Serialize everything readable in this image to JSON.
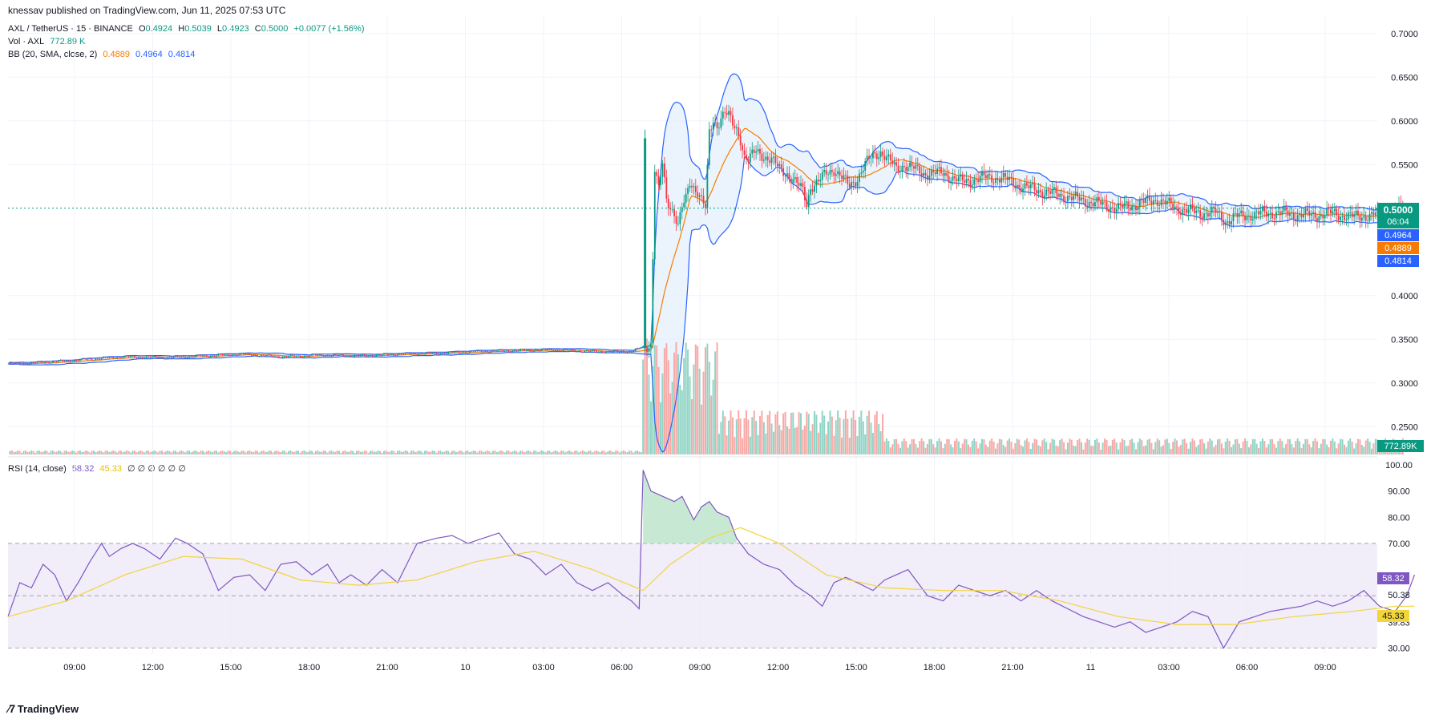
{
  "header": {
    "published": "knessav published on TradingView.com, Jun 11, 2025 07:53 UTC"
  },
  "legend": {
    "symbol": "AXL / TetherUS · 15 · BINANCE",
    "o_label": "O",
    "o": "0.4924",
    "h_label": "H",
    "h": "0.5039",
    "l_label": "L",
    "l": "0.4923",
    "c_label": "C",
    "c": "0.5000",
    "change": "+0.0077 (+1.56%)",
    "vol_label": "Vol · AXL",
    "vol": "772.89 K",
    "bb_label": "BB (20, SMA, close, 2)",
    "bb_basis": "0.4889",
    "bb_upper": "0.4964",
    "bb_lower": "0.4814",
    "rsi_label": "RSI (14, close)",
    "rsi": "58.32",
    "rsi_ma": "45.33",
    "rsi_extra": "∅ ∅ ∅ ∅ ∅ ∅"
  },
  "footer": {
    "logo_text": "TradingView"
  },
  "colors": {
    "up": "#089981",
    "down": "#f23645",
    "vol_up": "#8fd4c5",
    "vol_down": "#f7a9a7",
    "bb_band": "#2962ff",
    "bb_basis": "#f57c00",
    "bb_fill": "#e3f0fb",
    "rsi": "#7e57c2",
    "rsi_ma": "#f2d43d",
    "rsi_band": "#efeaf8",
    "price_line": "#089981"
  },
  "chart_data": [
    {
      "type": "candlestick",
      "title": "AXL / TetherUS · 15 · BINANCE",
      "y_axis_ticks": [
        "0.7000",
        "0.6500",
        "0.6000",
        "0.5500",
        "0.4000",
        "0.3500",
        "0.3000",
        "0.2500"
      ],
      "ylim": [
        0.22,
        0.72
      ],
      "x_tick_labels": [
        "09:00",
        "12:00",
        "15:00",
        "18:00",
        "21:00",
        "10",
        "03:00",
        "06:00",
        "09:00",
        "12:00",
        "15:00",
        "18:00",
        "21:00",
        "11",
        "03:00",
        "06:00",
        "09:00"
      ],
      "last_price_label": "0.5000",
      "countdown_label": "06:04",
      "bb_upper_label": "0.4964",
      "bb_basis_label": "0.4889",
      "bb_lower_label": "0.4814",
      "volume_label": "772.89K",
      "close_path": [
        [
          6,
          0.322
        ],
        [
          20,
          0.324
        ],
        [
          30,
          0.325
        ],
        [
          40,
          0.327
        ],
        [
          60,
          0.33
        ],
        [
          80,
          0.329
        ],
        [
          100,
          0.331
        ],
        [
          120,
          0.333
        ],
        [
          140,
          0.33
        ],
        [
          160,
          0.332
        ],
        [
          180,
          0.331
        ],
        [
          200,
          0.333
        ],
        [
          220,
          0.334
        ],
        [
          240,
          0.336
        ],
        [
          260,
          0.337
        ],
        [
          280,
          0.338
        ],
        [
          300,
          0.336
        ],
        [
          320,
          0.336
        ],
        [
          330,
          0.345
        ],
        [
          332,
          0.545
        ],
        [
          334,
          0.52
        ],
        [
          336,
          0.55
        ],
        [
          338,
          0.51
        ],
        [
          342,
          0.495
        ],
        [
          344,
          0.48
        ],
        [
          346,
          0.5
        ],
        [
          348,
          0.51
        ],
        [
          350,
          0.53
        ],
        [
          352,
          0.525
        ],
        [
          354,
          0.52
        ],
        [
          356,
          0.51
        ],
        [
          358,
          0.5
        ],
        [
          360,
          0.585
        ],
        [
          362,
          0.6
        ],
        [
          364,
          0.595
        ],
        [
          366,
          0.605
        ],
        [
          368,
          0.61
        ],
        [
          370,
          0.605
        ],
        [
          372,
          0.595
        ],
        [
          374,
          0.59
        ],
        [
          376,
          0.58
        ],
        [
          378,
          0.56
        ],
        [
          380,
          0.555
        ],
        [
          384,
          0.565
        ],
        [
          388,
          0.56
        ],
        [
          392,
          0.555
        ],
        [
          396,
          0.545
        ],
        [
          400,
          0.54
        ],
        [
          404,
          0.53
        ],
        [
          408,
          0.52
        ],
        [
          410,
          0.505
        ],
        [
          412,
          0.525
        ],
        [
          416,
          0.53
        ],
        [
          420,
          0.54
        ],
        [
          424,
          0.545
        ],
        [
          428,
          0.535
        ],
        [
          432,
          0.525
        ],
        [
          436,
          0.535
        ],
        [
          440,
          0.55
        ],
        [
          444,
          0.56
        ],
        [
          448,
          0.565
        ],
        [
          452,
          0.555
        ],
        [
          456,
          0.545
        ],
        [
          460,
          0.55
        ],
        [
          470,
          0.54
        ],
        [
          480,
          0.54
        ],
        [
          490,
          0.53
        ],
        [
          500,
          0.535
        ],
        [
          510,
          0.535
        ],
        [
          520,
          0.525
        ],
        [
          530,
          0.52
        ],
        [
          540,
          0.515
        ],
        [
          550,
          0.51
        ],
        [
          560,
          0.505
        ],
        [
          570,
          0.5
        ],
        [
          580,
          0.505
        ],
        [
          590,
          0.51
        ],
        [
          600,
          0.5
        ],
        [
          610,
          0.495
        ],
        [
          620,
          0.495
        ],
        [
          625,
          0.485
        ],
        [
          630,
          0.49
        ],
        [
          640,
          0.493
        ],
        [
          650,
          0.495
        ],
        [
          660,
          0.493
        ],
        [
          670,
          0.492
        ],
        [
          680,
          0.494
        ],
        [
          690,
          0.49
        ],
        [
          700,
          0.492
        ],
        [
          710,
          0.495
        ],
        [
          716,
          0.5
        ]
      ],
      "note_x": "x values are 15-minute bar indices from the left edge of the chart"
    },
    {
      "type": "line",
      "title": "RSI (14, close)",
      "y_axis_ticks": [
        "100.00",
        "90.00",
        "80.00",
        "70.00",
        "50.38",
        "39.83",
        "30.00"
      ],
      "bands": [
        70,
        50,
        30
      ],
      "ylim": [
        28,
        100
      ],
      "rsi_label": "58.32",
      "rsi_ma_label": "45.33",
      "series": [
        {
          "name": "RSI",
          "points": [
            [
              0,
              42
            ],
            [
              6,
              55
            ],
            [
              12,
              53
            ],
            [
              18,
              62
            ],
            [
              24,
              58
            ],
            [
              30,
              48
            ],
            [
              36,
              55
            ],
            [
              42,
              63
            ],
            [
              48,
              70
            ],
            [
              52,
              65
            ],
            [
              58,
              68
            ],
            [
              64,
              70
            ],
            [
              70,
              68
            ],
            [
              78,
              64
            ],
            [
              86,
              72
            ],
            [
              92,
              70
            ],
            [
              100,
              66
            ],
            [
              108,
              52
            ],
            [
              116,
              57
            ],
            [
              124,
              58
            ],
            [
              132,
              52
            ],
            [
              140,
              62
            ],
            [
              148,
              63
            ],
            [
              156,
              58
            ],
            [
              164,
              62
            ],
            [
              170,
              55
            ],
            [
              176,
              58
            ],
            [
              184,
              54
            ],
            [
              192,
              60
            ],
            [
              200,
              55
            ],
            [
              210,
              70
            ],
            [
              220,
              72
            ],
            [
              228,
              73
            ],
            [
              236,
              70
            ],
            [
              244,
              72
            ],
            [
              252,
              74
            ],
            [
              260,
              66
            ],
            [
              268,
              64
            ],
            [
              276,
              58
            ],
            [
              284,
              62
            ],
            [
              292,
              55
            ],
            [
              300,
              52
            ],
            [
              308,
              55
            ],
            [
              316,
              50
            ],
            [
              320,
              48
            ],
            [
              324,
              45
            ],
            [
              326,
              98
            ],
            [
              330,
              90
            ],
            [
              336,
              88
            ],
            [
              342,
              86
            ],
            [
              346,
              88
            ],
            [
              352,
              79
            ],
            [
              356,
              84
            ],
            [
              360,
              86
            ],
            [
              364,
              82
            ],
            [
              370,
              80
            ],
            [
              374,
              72
            ],
            [
              380,
              66
            ],
            [
              388,
              62
            ],
            [
              396,
              60
            ],
            [
              404,
              54
            ],
            [
              412,
              50
            ],
            [
              418,
              46
            ],
            [
              424,
              55
            ],
            [
              430,
              57
            ],
            [
              436,
              55
            ],
            [
              444,
              52
            ],
            [
              450,
              56
            ],
            [
              456,
              58
            ],
            [
              462,
              60
            ],
            [
              466,
              56
            ],
            [
              472,
              50
            ],
            [
              480,
              48
            ],
            [
              488,
              54
            ],
            [
              496,
              52
            ],
            [
              504,
              50
            ],
            [
              512,
              52
            ],
            [
              520,
              48
            ],
            [
              528,
              52
            ],
            [
              536,
              48
            ],
            [
              544,
              45
            ],
            [
              552,
              42
            ],
            [
              560,
              40
            ],
            [
              568,
              38
            ],
            [
              576,
              40
            ],
            [
              584,
              36
            ],
            [
              592,
              38
            ],
            [
              600,
              40
            ],
            [
              608,
              44
            ],
            [
              616,
              42
            ],
            [
              624,
              30
            ],
            [
              632,
              40
            ],
            [
              640,
              42
            ],
            [
              648,
              44
            ],
            [
              656,
              45
            ],
            [
              664,
              46
            ],
            [
              672,
              48
            ],
            [
              680,
              46
            ],
            [
              688,
              48
            ],
            [
              696,
              52
            ],
            [
              704,
              46
            ],
            [
              712,
              44
            ],
            [
              718,
              50
            ],
            [
              722,
              58
            ]
          ]
        },
        {
          "name": "RSI-based MA",
          "points": [
            [
              0,
              42
            ],
            [
              30,
              48
            ],
            [
              60,
              58
            ],
            [
              90,
              65
            ],
            [
              120,
              64
            ],
            [
              150,
              56
            ],
            [
              180,
              54
            ],
            [
              210,
              56
            ],
            [
              240,
              63
            ],
            [
              270,
              67
            ],
            [
              300,
              60
            ],
            [
              326,
              52
            ],
            [
              340,
              62
            ],
            [
              360,
              72
            ],
            [
              376,
              76
            ],
            [
              396,
              70
            ],
            [
              420,
              58
            ],
            [
              450,
              53
            ],
            [
              480,
              52
            ],
            [
              510,
              52
            ],
            [
              540,
              48
            ],
            [
              570,
              42
            ],
            [
              600,
              39
            ],
            [
              630,
              39
            ],
            [
              660,
              42
            ],
            [
              690,
              44
            ],
            [
              712,
              46
            ],
            [
              722,
              46
            ]
          ]
        }
      ],
      "note_x": "x values are 15-minute bar indices from the left edge of the chart"
    }
  ]
}
